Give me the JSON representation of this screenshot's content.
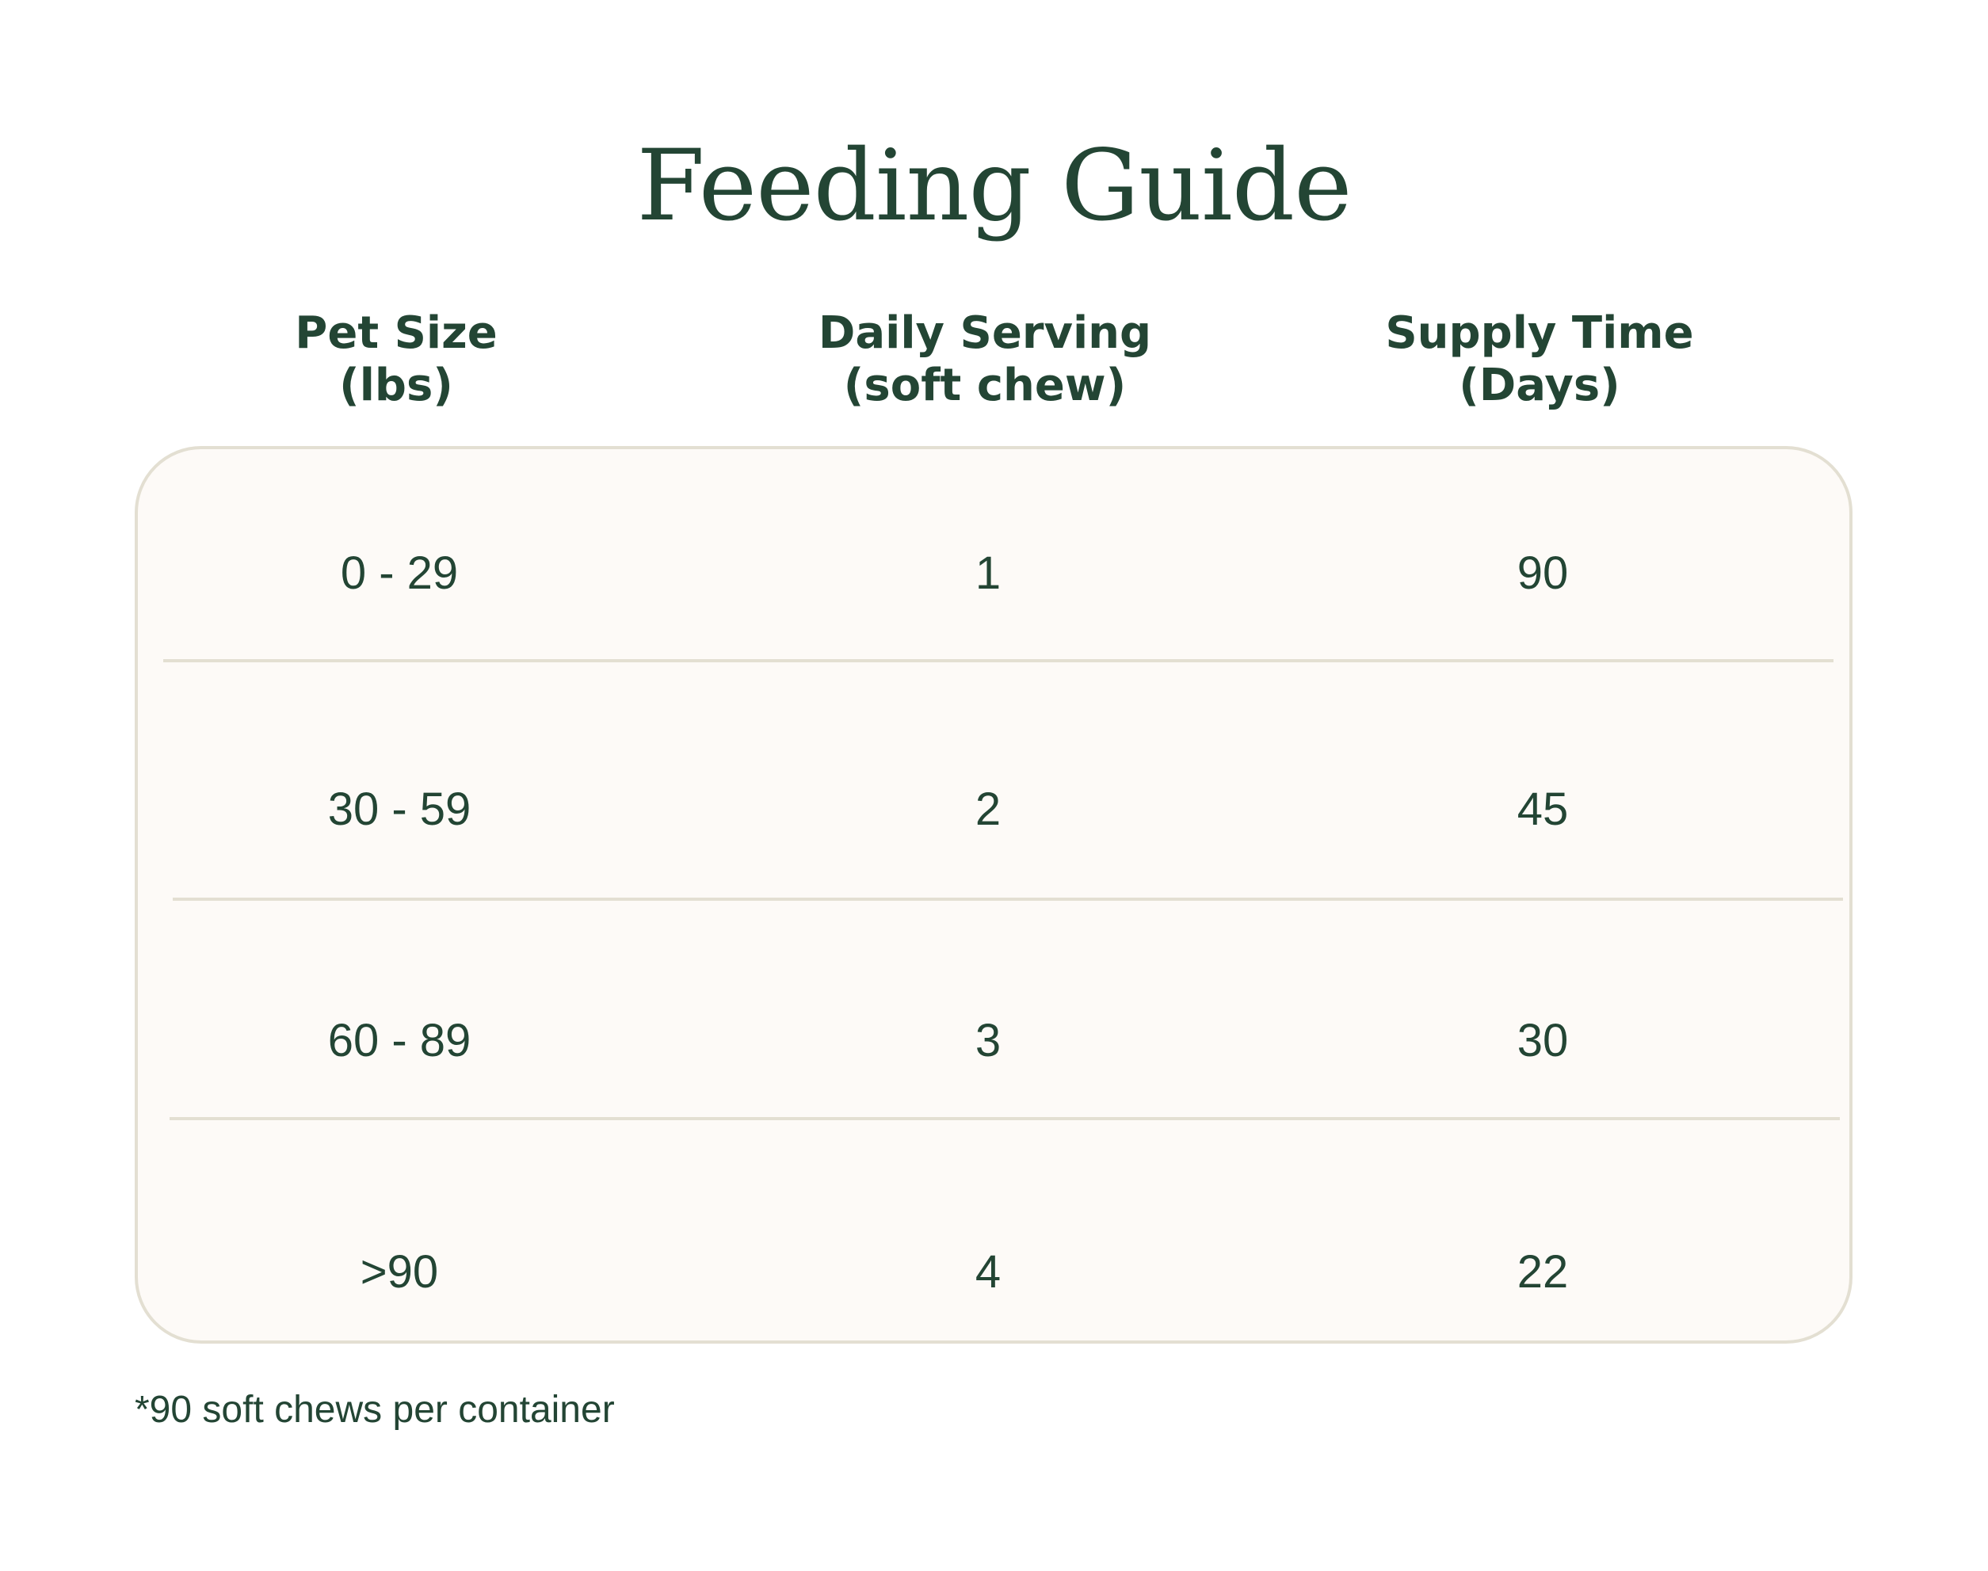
{
  "title": "Feeding Guide",
  "columns": [
    {
      "line1": "Pet Size",
      "line2": "(lbs)"
    },
    {
      "line1": "Daily Serving",
      "line2": "(soft chew)"
    },
    {
      "line1": "Supply Time",
      "line2": "(Days)"
    }
  ],
  "rows": [
    [
      "0 - 29",
      "1",
      "90"
    ],
    [
      "30 - 59",
      "2",
      "45"
    ],
    [
      "60 - 89",
      "3",
      "30"
    ],
    [
      ">90",
      "4",
      "22"
    ]
  ],
  "footnote": "*90 soft chews per container",
  "colors": {
    "text": "#234534",
    "card_background": "#fdfaf7",
    "card_border": "#e3dfd2"
  }
}
